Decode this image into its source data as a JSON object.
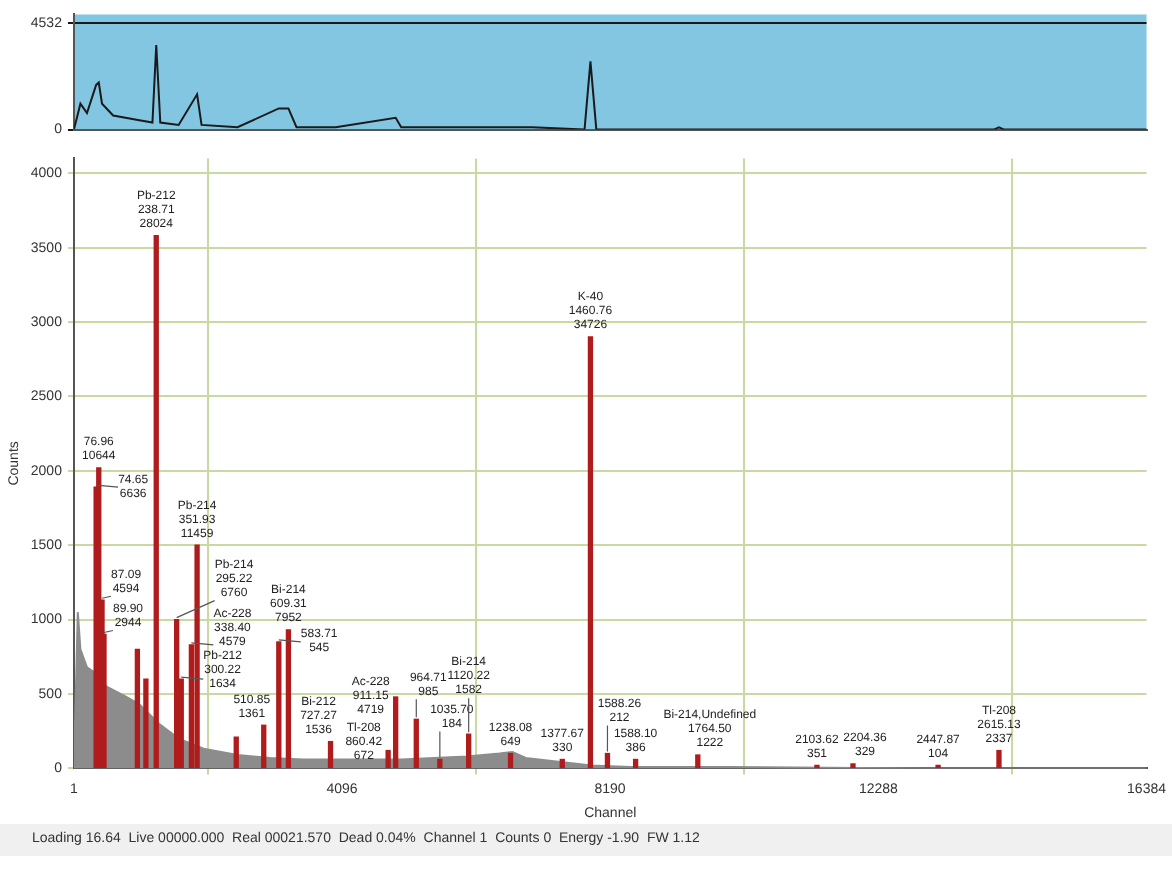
{
  "chart_data": [
    {
      "type": "line",
      "xlim": [
        1,
        16384
      ],
      "ylim": [
        0,
        4900
      ],
      "yticks": [
        0,
        4532
      ],
      "tick_labels": "y",
      "grid": "y",
      "series": [
        {
          "color": "#1a1a1a",
          "x": [
            1,
            100,
            200,
            340,
            380,
            430,
            600,
            1000,
            1200,
            1258,
            1320,
            1600,
            1882,
            1950,
            2500,
            3130,
            3277,
            3400,
            4000,
            4915,
            5000,
            6000,
            7000,
            7800,
            7890,
            7980,
            9000,
            12000,
            14050,
            14130,
            14210,
            16384
          ],
          "values": [
            0,
            1100,
            700,
            1900,
            2000,
            1100,
            600,
            400,
            300,
            3600,
            300,
            200,
            1500,
            200,
            100,
            900,
            900,
            100,
            100,
            500,
            100,
            100,
            100,
            0,
            2900,
            0,
            0,
            0,
            0,
            100,
            0,
            0
          ]
        }
      ]
    },
    {
      "type": "area",
      "xlabel": "Channel",
      "ylabel": "Counts",
      "xlim": [
        1,
        16384
      ],
      "ylim": [
        0,
        4100
      ],
      "xticks": [
        1,
        4096,
        8190,
        12288,
        16384
      ],
      "yticks": [
        0,
        500,
        1000,
        1500,
        2000,
        2500,
        3000,
        3500,
        4000
      ],
      "grid": true,
      "series": [
        {
          "color": "#8c8c8c",
          "x": [
            1,
            60,
            100,
            200,
            300,
            500,
            800,
            1000,
            1300,
            1600,
            2000,
            2500,
            3000,
            3500,
            4000,
            5000,
            6000,
            6500,
            6700,
            6900,
            7300,
            7900,
            8500,
            10000,
            13000,
            16384
          ],
          "values": [
            0,
            1050,
            800,
            680,
            650,
            550,
            480,
            430,
            300,
            200,
            130,
            90,
            70,
            60,
            60,
            60,
            80,
            100,
            110,
            70,
            50,
            20,
            10,
            10,
            0,
            0
          ]
        },
        {
          "type": "bar",
          "color": "#b01c1c",
          "x": [
            340,
            380,
            430,
            460,
            970,
            1100,
            1258,
            1570,
            1640,
            1795,
            1882,
            2480,
            2900,
            3130,
            3277,
            3920,
            4800,
            4915,
            5230,
            5590,
            6030,
            6670,
            7460,
            7890,
            8150,
            8580,
            9530,
            11350,
            11900,
            13200,
            14130
          ],
          "values": [
            1890,
            2020,
            1130,
            900,
            800,
            600,
            3580,
            1000,
            600,
            830,
            1500,
            210,
            290,
            850,
            930,
            180,
            120,
            480,
            330,
            60,
            230,
            100,
            60,
            2900,
            100,
            60,
            90,
            20,
            30,
            20,
            120
          ]
        }
      ],
      "annotations": [
        {
          "text": "76.96\n10644",
          "x": 380,
          "y": 2020
        },
        {
          "text": "74.65\n6636",
          "x": 340,
          "y": 1890
        },
        {
          "text": "87.09\n4594",
          "x": 430,
          "y": 1130
        },
        {
          "text": "89.90\n2944",
          "x": 460,
          "y": 900
        },
        {
          "text": "Pb-212\n238.71\n28024",
          "x": 1258,
          "y": 3580
        },
        {
          "text": "Pb-214\n351.93\n11459",
          "x": 1882,
          "y": 1500
        },
        {
          "text": "Pb-214\n295.22\n6760",
          "x": 1570,
          "y": 1000
        },
        {
          "text": "Ac-228\n338.40\n4579",
          "x": 1795,
          "y": 830
        },
        {
          "text": "Pb-212\n300.22\n1634",
          "x": 1640,
          "y": 600
        },
        {
          "text": "Bi-214\n609.31\n7952",
          "x": 3277,
          "y": 930
        },
        {
          "text": "583.71\n545",
          "x": 3130,
          "y": 850
        },
        {
          "text": "510.85\n1361",
          "x": 2900,
          "y": 290
        },
        {
          "text": "Bi-212\n727.27\n1536",
          "x": 3920,
          "y": 180
        },
        {
          "text": "Ac-228\n911.15\n4719",
          "x": 4915,
          "y": 480
        },
        {
          "text": "Tl-208\n860.42\n672",
          "x": 4800,
          "y": 120
        },
        {
          "text": "964.71\n985",
          "x": 5230,
          "y": 330
        },
        {
          "text": "1035.70\n184",
          "x": 5590,
          "y": 60
        },
        {
          "text": "Bi-214\n1120.22\n1582",
          "x": 6030,
          "y": 230
        },
        {
          "text": "1238.08\n649",
          "x": 6670,
          "y": 100
        },
        {
          "text": "1377.67\n330",
          "x": 7460,
          "y": 60
        },
        {
          "text": "K-40\n1460.76\n34726",
          "x": 7890,
          "y": 2900
        },
        {
          "text": "1588.26\n212",
          "x": 8150,
          "y": 100
        },
        {
          "text": "1588.10\n386",
          "x": 8580,
          "y": 60
        },
        {
          "text": "Bi-214,Undefined\n1764.50\n1222",
          "x": 9530,
          "y": 90
        },
        {
          "text": "2103.62\n351",
          "x": 11350,
          "y": 20
        },
        {
          "text": "2204.36\n329",
          "x": 11900,
          "y": 30
        },
        {
          "text": "2447.87\n104",
          "x": 13200,
          "y": 20
        },
        {
          "text": "Tl-208\n2615.13\n2337",
          "x": 14130,
          "y": 120
        },
        "Loading 16.64  Live 00000.000  Real 00021.570  Dead 0.04%  Channel 1  Counts 0  Energy -1.90  FW 1.12"
      ]
    }
  ]
}
